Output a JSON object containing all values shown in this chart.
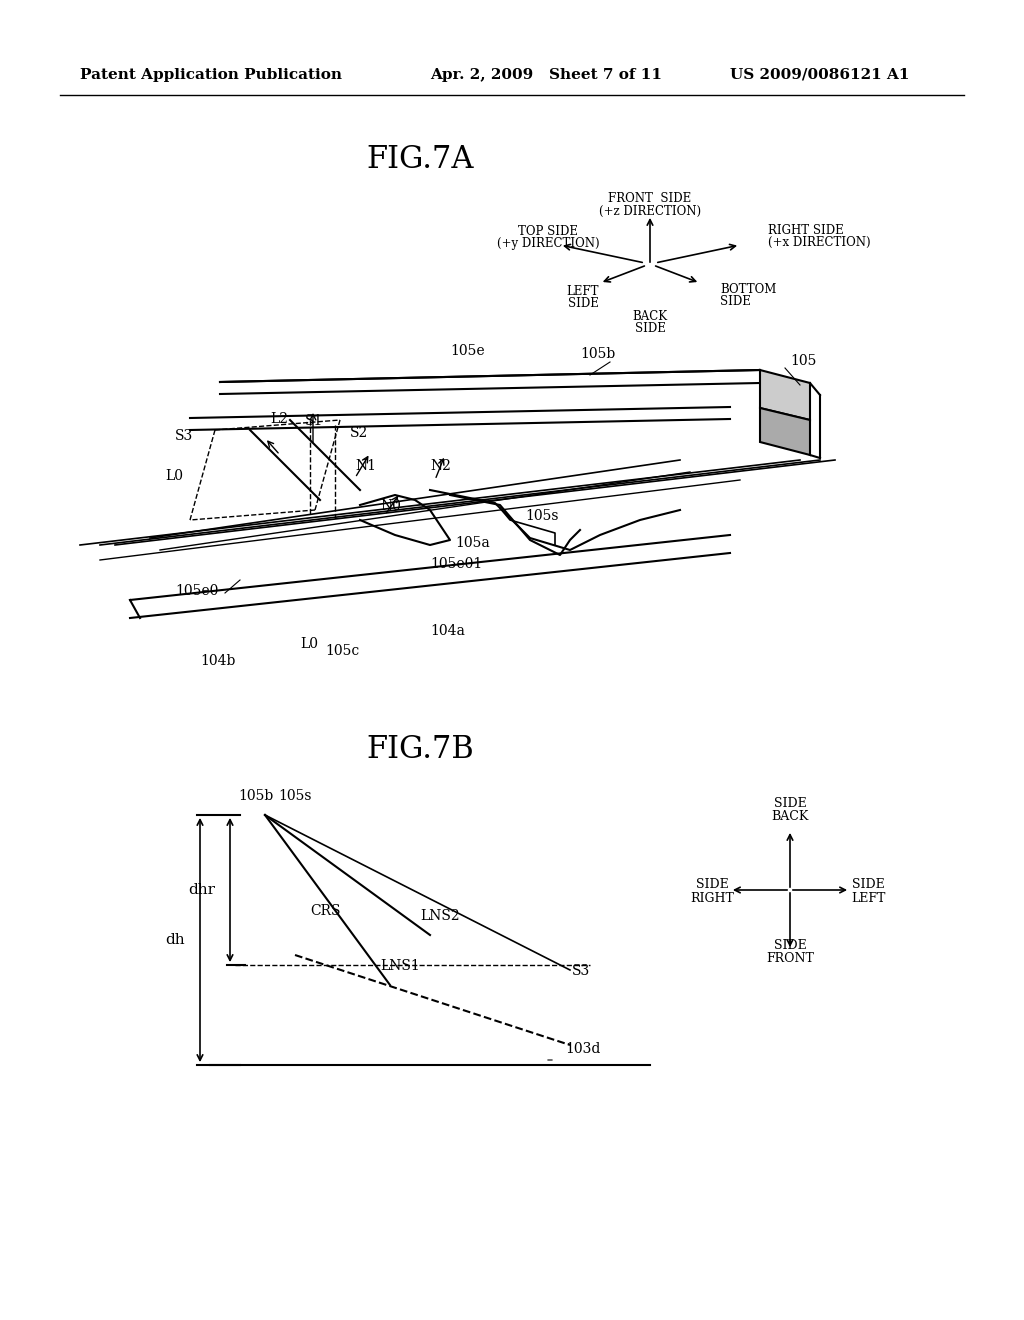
{
  "bg_color": "#ffffff",
  "header_left": "Patent Application Publication",
  "header_mid": "Apr. 2, 2009   Sheet 7 of 11",
  "header_right": "US 2009/0086121 A1",
  "fig7a_title": "FIG.7A",
  "fig7b_title": "FIG.7B"
}
